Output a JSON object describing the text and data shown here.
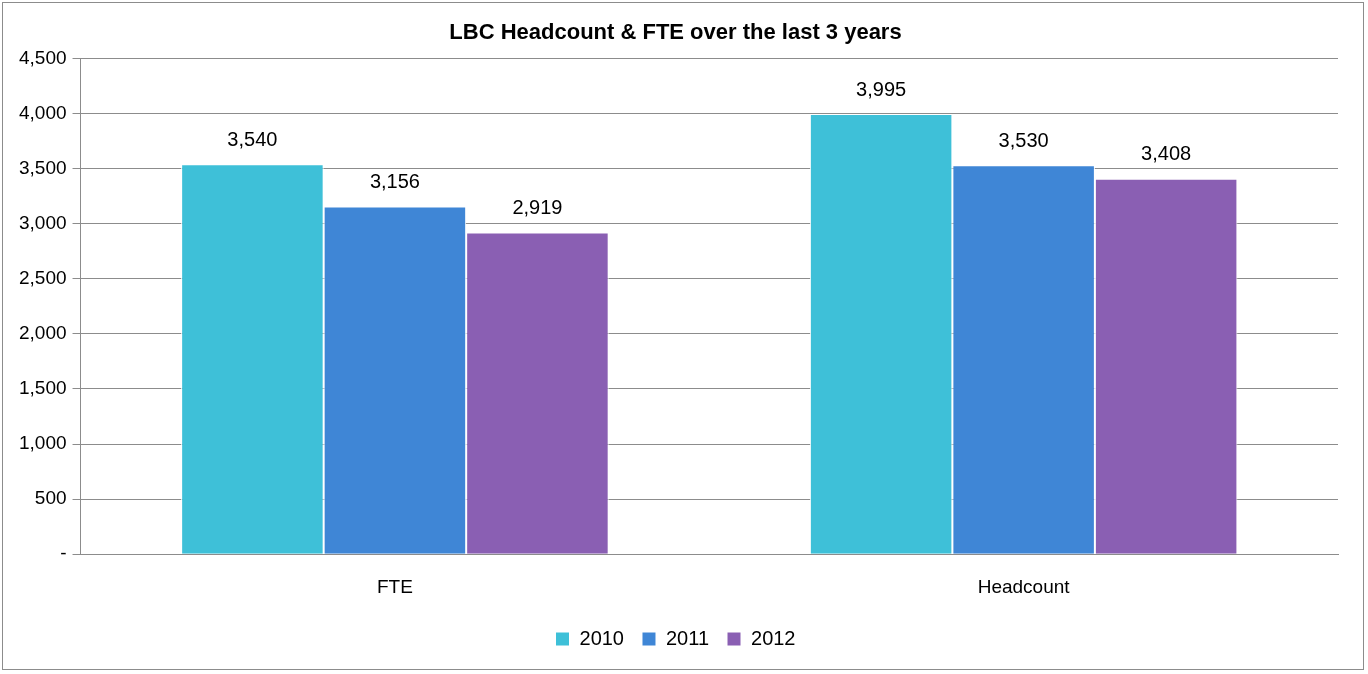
{
  "chart_data": {
    "type": "bar",
    "title": "LBC Headcount & FTE over the last 3 years",
    "categories": [
      "FTE",
      "Headcount"
    ],
    "series": [
      {
        "name": "2010",
        "color": "#3ec0d8",
        "values": [
          3540,
          3995
        ],
        "value_labels": [
          "3,540",
          "3,995"
        ]
      },
      {
        "name": "2011",
        "color": "#3f86d6",
        "values": [
          3156,
          3530
        ],
        "value_labels": [
          "3,156",
          "3,530"
        ]
      },
      {
        "name": "2012",
        "color": "#8a5fb3",
        "values": [
          2919,
          3408
        ],
        "value_labels": [
          "2,919",
          "3,408"
        ]
      }
    ],
    "ylim": [
      0,
      4500
    ],
    "yticks": [
      {
        "value": 0,
        "label": "-"
      },
      {
        "value": 500,
        "label": "500"
      },
      {
        "value": 1000,
        "label": "1,000"
      },
      {
        "value": 1500,
        "label": "1,500"
      },
      {
        "value": 2000,
        "label": "2,000"
      },
      {
        "value": 2500,
        "label": "2,500"
      },
      {
        "value": 3000,
        "label": "3,000"
      },
      {
        "value": 3500,
        "label": "3,500"
      },
      {
        "value": 4000,
        "label": "4,000"
      },
      {
        "value": 4500,
        "label": "4,500"
      }
    ],
    "grid": "y",
    "legend": "bottom"
  }
}
